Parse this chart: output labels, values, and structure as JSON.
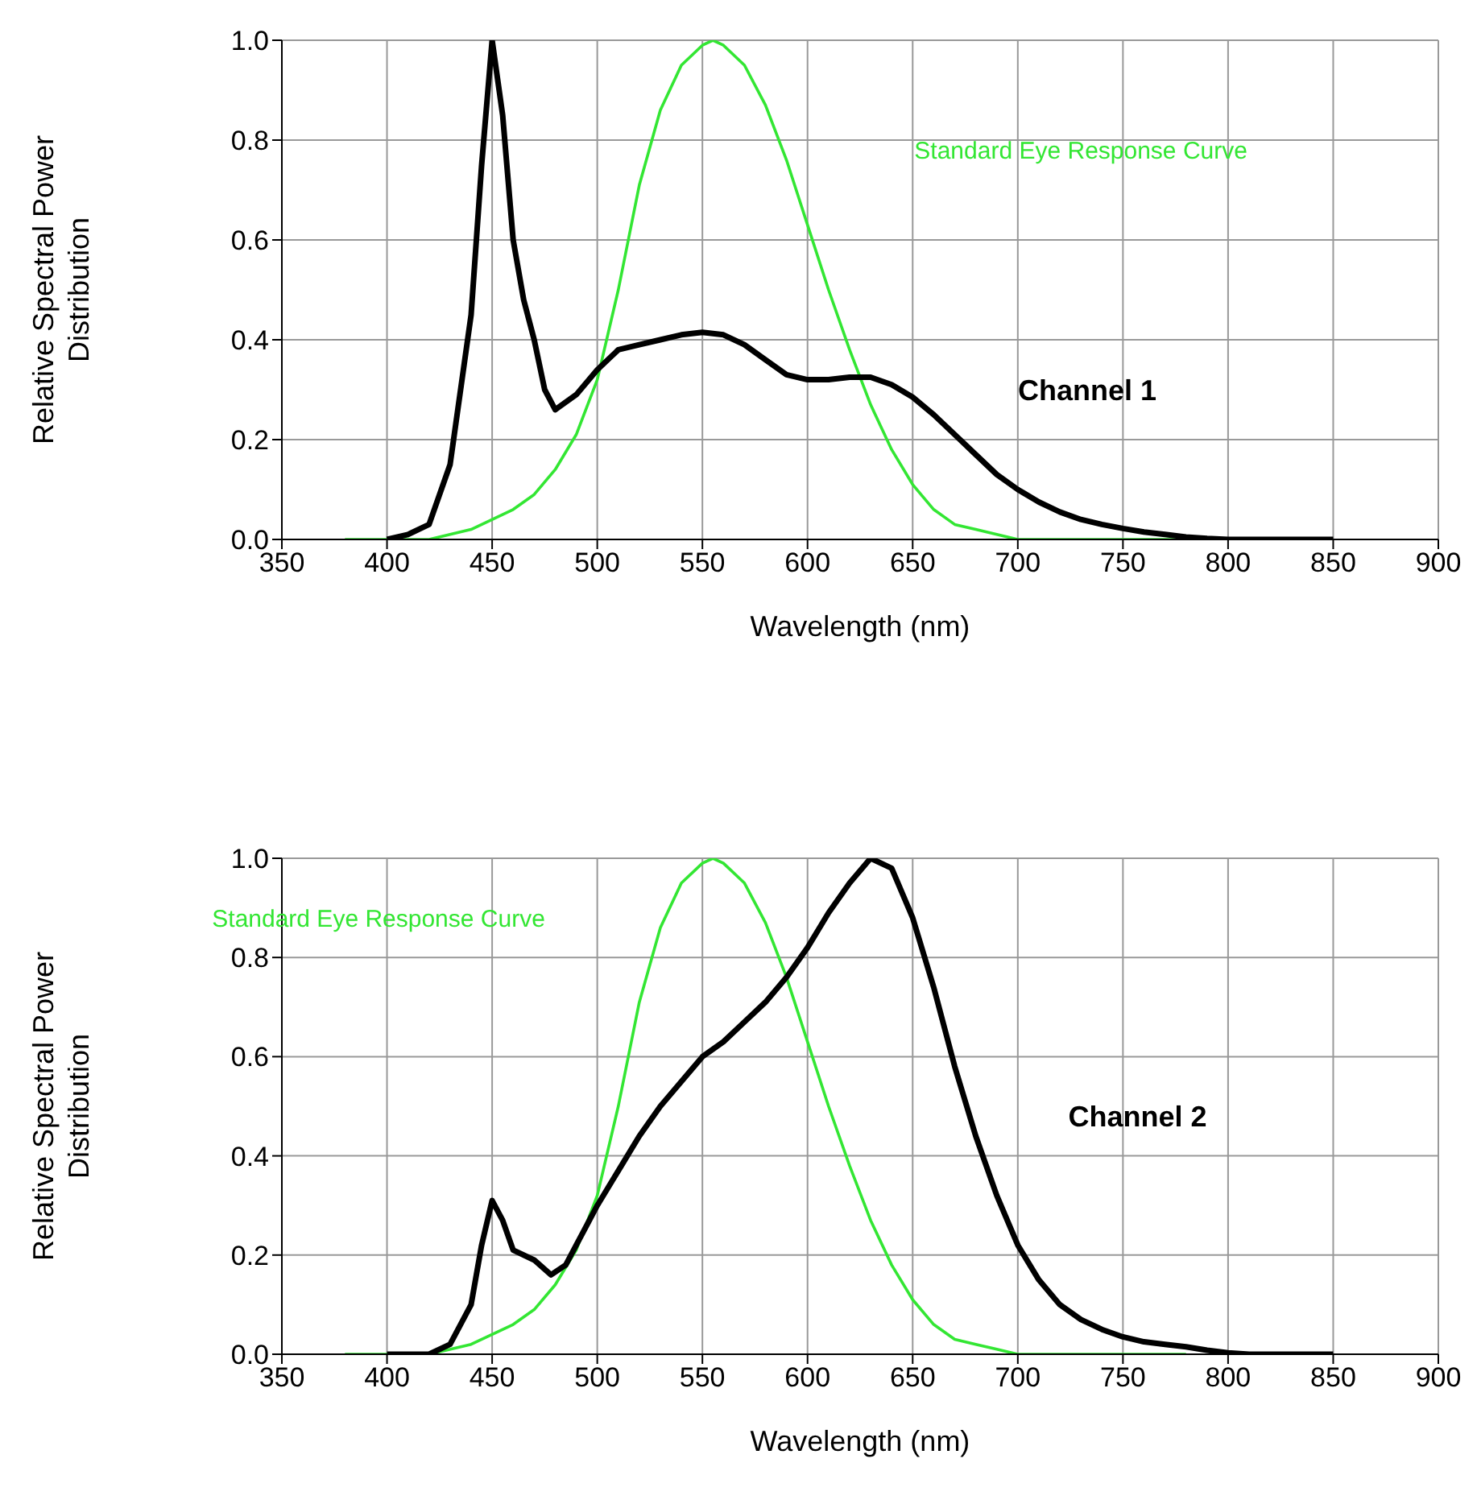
{
  "chart_data": [
    {
      "type": "line",
      "xlabel": "Wavelength (nm)",
      "ylabel": "Relative Spectral Power Distribution",
      "xlim": [
        350,
        900
      ],
      "xticks": [
        350,
        400,
        450,
        500,
        550,
        600,
        650,
        700,
        750,
        800,
        850,
        900
      ],
      "ylim": [
        0,
        1
      ],
      "yticks": [
        {
          "value": 0,
          "label": "0.0"
        },
        {
          "value": 0.2,
          "label": "0.2"
        },
        {
          "value": 0.4,
          "label": "0.4"
        },
        {
          "value": 0.6,
          "label": "0.6"
        },
        {
          "value": 0.8,
          "label": "0.8"
        },
        {
          "value": 1,
          "label": "1.0"
        }
      ],
      "grid": true,
      "series": [
        {
          "name": "Standard Eye Response Curve",
          "color": "#33e633",
          "x": [
            380,
            400,
            420,
            440,
            460,
            470,
            480,
            490,
            500,
            510,
            520,
            530,
            540,
            550,
            555,
            560,
            570,
            580,
            590,
            600,
            610,
            620,
            630,
            640,
            650,
            660,
            670,
            680,
            690,
            700,
            720,
            740,
            780
          ],
          "values": [
            0,
            0,
            0,
            0.02,
            0.06,
            0.09,
            0.14,
            0.21,
            0.32,
            0.5,
            0.71,
            0.86,
            0.95,
            0.99,
            1,
            0.99,
            0.95,
            0.87,
            0.76,
            0.63,
            0.5,
            0.38,
            0.27,
            0.18,
            0.11,
            0.06,
            0.03,
            0.02,
            0.01,
            0,
            0,
            0,
            0
          ]
        },
        {
          "name": "Channel 1",
          "color": "#000000",
          "x": [
            400,
            410,
            420,
            430,
            440,
            445,
            450,
            455,
            460,
            465,
            470,
            475,
            480,
            490,
            500,
            510,
            520,
            530,
            540,
            550,
            560,
            570,
            580,
            590,
            600,
            610,
            620,
            630,
            640,
            650,
            660,
            670,
            680,
            690,
            700,
            710,
            720,
            730,
            740,
            750,
            760,
            770,
            780,
            790,
            800,
            850
          ],
          "values": [
            0,
            0.01,
            0.03,
            0.15,
            0.45,
            0.75,
            1,
            0.85,
            0.6,
            0.48,
            0.4,
            0.3,
            0.26,
            0.29,
            0.34,
            0.38,
            0.39,
            0.4,
            0.41,
            0.415,
            0.41,
            0.39,
            0.36,
            0.33,
            0.32,
            0.32,
            0.325,
            0.325,
            0.31,
            0.285,
            0.25,
            0.21,
            0.17,
            0.13,
            0.1,
            0.075,
            0.055,
            0.04,
            0.03,
            0.022,
            0.015,
            0.01,
            0.005,
            0.002,
            0,
            0
          ]
        }
      ]
    },
    {
      "type": "line",
      "xlabel": "Wavelength (nm)",
      "ylabel": "Relative Spectral Power Distribution",
      "xlim": [
        350,
        900
      ],
      "xticks": [
        350,
        400,
        450,
        500,
        550,
        600,
        650,
        700,
        750,
        800,
        850,
        900
      ],
      "ylim": [
        0,
        1
      ],
      "yticks": [
        {
          "value": 0,
          "label": "0.0"
        },
        {
          "value": 0.2,
          "label": "0.2"
        },
        {
          "value": 0.4,
          "label": "0.4"
        },
        {
          "value": 0.6,
          "label": "0.6"
        },
        {
          "value": 0.8,
          "label": "0.8"
        },
        {
          "value": 1,
          "label": "1.0"
        }
      ],
      "grid": true,
      "series": [
        {
          "name": "Standard Eye Response Curve",
          "color": "#33e633",
          "x": [
            380,
            400,
            420,
            440,
            460,
            470,
            480,
            490,
            500,
            510,
            520,
            530,
            540,
            550,
            555,
            560,
            570,
            580,
            590,
            600,
            610,
            620,
            630,
            640,
            650,
            660,
            670,
            680,
            690,
            700,
            720,
            740,
            780
          ],
          "values": [
            0,
            0,
            0,
            0.02,
            0.06,
            0.09,
            0.14,
            0.21,
            0.32,
            0.5,
            0.71,
            0.86,
            0.95,
            0.99,
            1,
            0.99,
            0.95,
            0.87,
            0.76,
            0.63,
            0.5,
            0.38,
            0.27,
            0.18,
            0.11,
            0.06,
            0.03,
            0.02,
            0.01,
            0,
            0,
            0,
            0
          ]
        },
        {
          "name": "Channel 2",
          "color": "#000000",
          "x": [
            400,
            420,
            430,
            440,
            445,
            450,
            455,
            460,
            470,
            478,
            485,
            490,
            500,
            510,
            520,
            530,
            540,
            550,
            560,
            570,
            580,
            590,
            600,
            610,
            620,
            630,
            640,
            650,
            660,
            670,
            680,
            690,
            700,
            710,
            720,
            730,
            740,
            750,
            760,
            770,
            780,
            790,
            800,
            810,
            850
          ],
          "values": [
            0,
            0,
            0.02,
            0.1,
            0.22,
            0.31,
            0.27,
            0.21,
            0.19,
            0.16,
            0.18,
            0.22,
            0.3,
            0.37,
            0.44,
            0.5,
            0.55,
            0.6,
            0.63,
            0.67,
            0.71,
            0.76,
            0.82,
            0.89,
            0.95,
            1,
            0.98,
            0.88,
            0.74,
            0.58,
            0.44,
            0.32,
            0.22,
            0.15,
            0.1,
            0.07,
            0.05,
            0.035,
            0.025,
            0.02,
            0.015,
            0.008,
            0.003,
            0,
            0
          ]
        }
      ]
    }
  ]
}
